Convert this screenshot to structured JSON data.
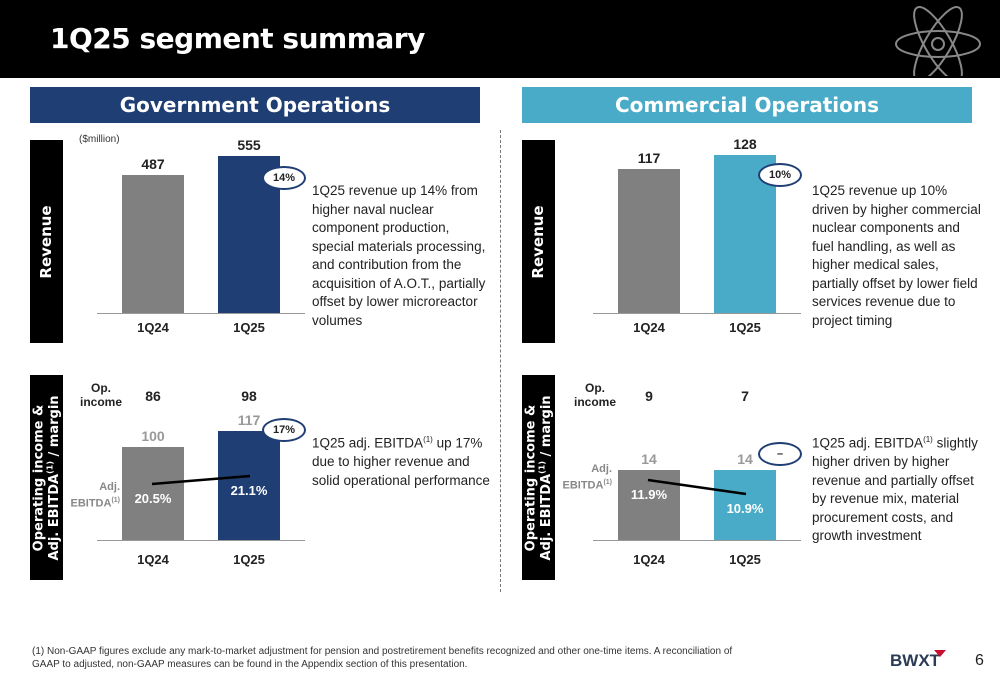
{
  "page": {
    "title": "1Q25 segment summary",
    "page_number": "6",
    "units": "($million)",
    "footnote": "(1) Non-GAAP figures exclude any mark-to-market adjustment for pension and postretirement benefits recognized and other one-time items.  A reconciliation of GAAP to adjusted, non-GAAP measures can be found in the Appendix section of this presentation.",
    "logo_text": "BWXT"
  },
  "labels": {
    "revenue": "Revenue",
    "op_line1": "Operating income &",
    "op_line2": "Adj. EBITDA",
    "op_sup": "(1)",
    "op_line2_tail": " / margin",
    "op_income_1": "Op.",
    "op_income_2": "income",
    "adj_1": "Adj.",
    "adj_2": "EBITDA",
    "adj_sup": "(1)"
  },
  "colors": {
    "gov": "#1f3e73",
    "com": "#4aabc8",
    "prior": "#808080"
  },
  "government": {
    "banner": "Government Operations",
    "revenue_desc": "1Q25 revenue up 14% from higher naval nuclear component production, special materials processing, and contribution from the acquisition of A.O.T., partially offset by lower microreactor volumes",
    "ebitda_desc_pre": "1Q25 adj. EBITDA",
    "ebitda_desc_sup": "(1)",
    "ebitda_desc_post": " up 17% due to higher revenue and solid operational performance"
  },
  "commercial": {
    "banner": "Commercial Operations",
    "revenue_desc": "1Q25 revenue up 10% driven by higher commercial nuclear components and fuel handling, as well as higher medical sales, partially offset by lower field services revenue due to project timing",
    "ebitda_desc_pre": "1Q25 adj. EBITDA",
    "ebitda_desc_sup": "(1)",
    "ebitda_desc_post": " slightly higher driven by higher revenue and partially offset by revenue mix, material procurement costs, and growth investment"
  },
  "chart_data": [
    {
      "type": "bar",
      "title": "",
      "ylabel": "Revenue",
      "categories": [
        "1Q24",
        "1Q25"
      ],
      "values": [
        487,
        555
      ],
      "value_labels": [
        "487",
        "555"
      ],
      "growth_label": "14%",
      "ylim": [
        0,
        600
      ]
    },
    {
      "type": "bar",
      "ylabel": "Operating income & Adj. EBITDA(1) / margin",
      "categories": [
        "1Q24",
        "1Q25"
      ],
      "op_income": [
        "86",
        "98"
      ],
      "values": [
        100,
        117
      ],
      "value_labels": [
        "100",
        "117"
      ],
      "margins": [
        20.5,
        21.1
      ],
      "margin_labels": [
        "20.5%",
        "21.1%"
      ],
      "growth_label": "17%",
      "ylim": [
        0,
        140
      ]
    },
    {
      "type": "bar",
      "title": "",
      "ylabel": "Revenue",
      "categories": [
        "1Q24",
        "1Q25"
      ],
      "values": [
        117,
        128
      ],
      "value_labels": [
        "117",
        "128"
      ],
      "growth_label": "10%",
      "ylim": [
        0,
        138
      ]
    },
    {
      "type": "bar",
      "ylabel": "Operating income & Adj. EBITDA(1) / margin",
      "categories": [
        "1Q24",
        "1Q25"
      ],
      "op_income": [
        "9",
        "7"
      ],
      "values": [
        14,
        14
      ],
      "value_labels": [
        "14",
        "14"
      ],
      "margins": [
        11.9,
        10.9
      ],
      "margin_labels": [
        "11.9%",
        "10.9%"
      ],
      "growth_label": "–",
      "ylim": [
        0,
        20
      ]
    }
  ]
}
